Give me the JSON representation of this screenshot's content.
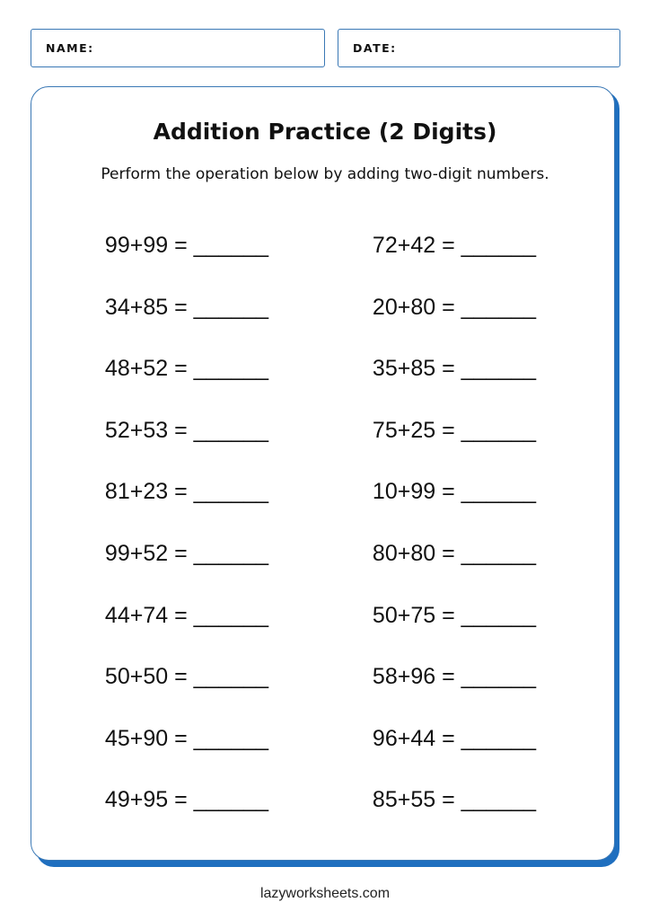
{
  "header": {
    "name_label": "NAME:",
    "date_label": "DATE:"
  },
  "worksheet": {
    "title": "Addition Practice (2 Digits)",
    "instructions": "Perform the operation below by adding two-digit numbers.",
    "left_column": [
      "99+99 = ______",
      "34+85 = ______",
      "48+52 = ______",
      "52+53 = ______",
      "81+23 = ______",
      "99+52 = ______",
      "44+74 = ______",
      "50+50 = ______",
      "45+90 = ______",
      "49+95 = ______"
    ],
    "right_column": [
      "72+42 = ______",
      "20+80 = ______",
      "35+85 = ______",
      "75+25 = ______",
      "10+99 = ______",
      "80+80 = ______",
      "50+75 = ______",
      "58+96 = ______",
      "96+44 = ______",
      "85+55 = ______"
    ]
  },
  "footer": {
    "site": "lazyworksheets.com"
  },
  "colors": {
    "accent": "#1f6fbf",
    "border": "#3a78b5"
  }
}
